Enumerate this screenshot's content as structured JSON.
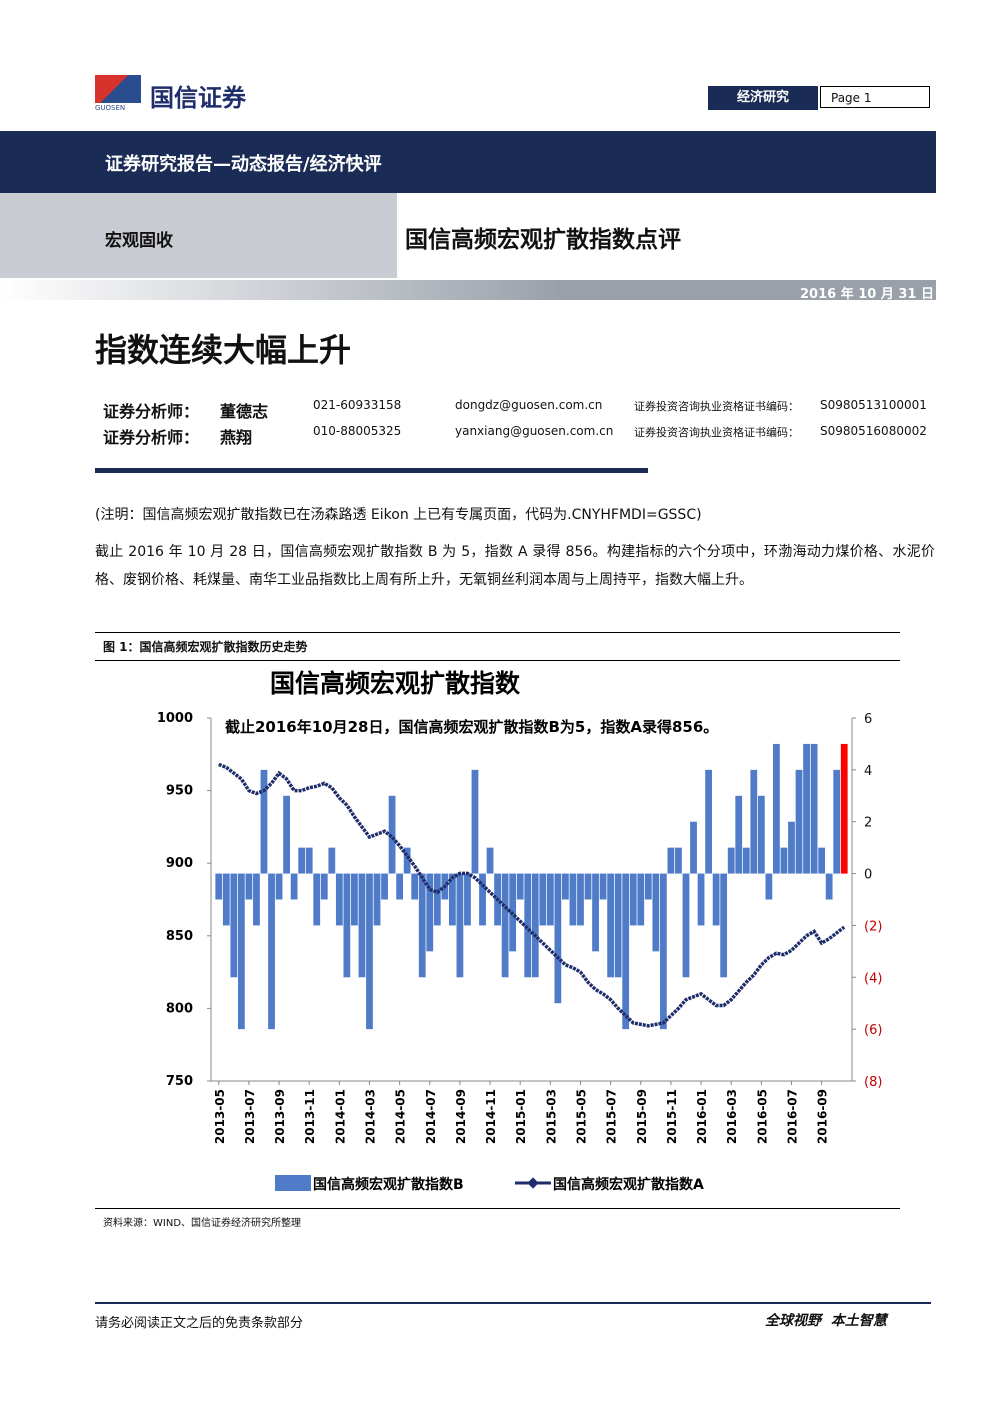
{
  "header": {
    "logo_cn": "国信证券",
    "logo_en": "GUOSEN",
    "section": "经济研究",
    "page": "Page 1"
  },
  "banner": "证券研究报告—动态报告/经济快评",
  "category": "宏观固收",
  "report_title": "国信高频宏观扩散指数点评",
  "date": "2016 年 10 月 31 日",
  "headline": "指数连续大幅上升",
  "analysts": [
    [
      "证券分析师：",
      "董德志",
      "021-60933158",
      "dongdz@guosen.com.cn",
      "证券投资咨询执业资格证书编码：",
      "S0980513100001"
    ],
    [
      "证券分析师：",
      "燕翔",
      "010-88005325",
      "yanxiang@guosen.com.cn",
      "证券投资咨询执业资格证书编码：",
      "S0980516080002"
    ]
  ],
  "note": "(注明：国信高频宏观扩散指数已在汤森路透 Eikon 上已有专属页面，代码为.CNYHFMDI=GSSC)",
  "paragraph": "截止 2016 年 10 月 28 日，国信高频宏观扩散指数 B 为 5，指数 A 录得 856。构建指标的六个分项中，环渤海动力煤价格、水泥价格、废钢价格、耗煤量、南华工业品指数比上周有所上升，无氧铜丝利润本周与上周持平，指数大幅上升。",
  "figure_caption": "图 1：国信高频宏观扩散指数历史走势",
  "chart_data": {
    "type": "bar_line",
    "title": "国信高频宏观扩散指数",
    "annotation": "截止2016年10月28日，国信高频宏观扩散指数B为5，指数A录得856。",
    "categories": [
      "2013-05",
      null,
      null,
      null,
      "2013-07",
      null,
      null,
      null,
      "2013-09",
      null,
      null,
      null,
      "2013-11",
      null,
      null,
      null,
      "2014-01",
      null,
      null,
      null,
      "2014-03",
      null,
      null,
      null,
      "2014-05",
      null,
      null,
      null,
      "2014-07",
      null,
      null,
      null,
      "2014-09",
      null,
      null,
      null,
      "2014-11",
      null,
      null,
      null,
      "2015-01",
      null,
      null,
      null,
      "2015-03",
      null,
      null,
      null,
      "2015-05",
      null,
      null,
      null,
      "2015-07",
      null,
      null,
      null,
      "2015-09",
      null,
      null,
      null,
      "2015-11",
      null,
      null,
      null,
      "2016-01",
      null,
      null,
      null,
      "2016-03",
      null,
      null,
      null,
      "2016-05",
      null,
      null,
      null,
      "2016-07",
      null,
      null,
      null,
      "2016-09",
      null,
      null,
      null
    ],
    "series": [
      {
        "name": "国信高频宏观扩散指数B",
        "type": "bar",
        "axis": "y2",
        "color": "#4f7bc8",
        "latest_color": "#ff0000",
        "values": [
          -1,
          -2,
          -4,
          -6,
          -1,
          -2,
          4,
          -6,
          -1,
          3,
          -1,
          1,
          1,
          -2,
          -1,
          1,
          -2,
          -4,
          -2,
          -4,
          -6,
          -2,
          -1,
          3,
          -1,
          1,
          -1,
          -4,
          -3,
          -2,
          -1,
          -2,
          -4,
          -2,
          4,
          -2,
          1,
          -2,
          -4,
          -3,
          -1,
          -4,
          -4,
          -2,
          -2,
          -5,
          -1,
          -2,
          -2,
          -1,
          -3,
          -1,
          -4,
          -4,
          -6,
          -2,
          -2,
          -1,
          -3,
          -6,
          1,
          1,
          -4,
          2,
          -2,
          4,
          -2,
          -4,
          1,
          3,
          1,
          4,
          3,
          -1,
          5,
          1,
          2,
          4,
          5,
          5,
          1,
          -1,
          4,
          5
        ]
      },
      {
        "name": "国信高频宏观扩散指数A",
        "type": "line",
        "axis": "y",
        "color": "#1f2d6b",
        "values": [
          968,
          966,
          962,
          958,
          950,
          948,
          950,
          955,
          962,
          958,
          950,
          950,
          952,
          953,
          955,
          952,
          945,
          940,
          932,
          925,
          918,
          920,
          922,
          918,
          912,
          905,
          898,
          890,
          882,
          880,
          884,
          890,
          893,
          893,
          890,
          885,
          880,
          875,
          870,
          865,
          860,
          855,
          850,
          845,
          840,
          835,
          830,
          828,
          825,
          818,
          813,
          810,
          806,
          800,
          795,
          790,
          789,
          788,
          789,
          790,
          795,
          800,
          806,
          808,
          810,
          806,
          802,
          802,
          806,
          812,
          818,
          823,
          830,
          835,
          838,
          837,
          840,
          845,
          850,
          853,
          845,
          848,
          852,
          856
        ]
      }
    ],
    "ylim": [
      750,
      1000
    ],
    "yticks": [
      750,
      800,
      850,
      900,
      950,
      1000
    ],
    "y2lim": [
      -8,
      6
    ],
    "y2ticks": [
      {
        "value": -8,
        "label": "(8)"
      },
      {
        "value": -6,
        "label": "(6)"
      },
      {
        "value": -4,
        "label": "(4)"
      },
      {
        "value": -2,
        "label": "(2)"
      },
      0,
      2,
      4,
      6
    ]
  },
  "source": "资料来源：WIND、国信证券经济研究所整理",
  "footer": {
    "disclaimer": "请务必阅读正文之后的免责条款部分",
    "slogan": "全球视野  本土智慧"
  }
}
